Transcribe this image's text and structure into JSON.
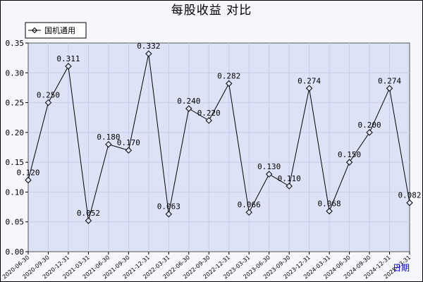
{
  "chart_data": {
    "type": "line",
    "title": "每股收益  对比",
    "xlabel": "日期",
    "ylabel": "",
    "ylim": [
      0,
      0.35
    ],
    "yticks": [
      "0.00",
      "0.05",
      "0.10",
      "0.15",
      "0.20",
      "0.25",
      "0.30",
      "0.35"
    ],
    "grid": true,
    "legend_position": "top-left",
    "colors": {
      "plot_bg": "#dde3f7",
      "grid": "#c4cbea",
      "line": "#000000",
      "outer_bg": "#f6f6fd"
    },
    "categories": [
      "2020-06-30",
      "2020-09-30",
      "2020-12-31",
      "2021-03-31",
      "2021-06-30",
      "2021-09-30",
      "2021-12-31",
      "2022-03-31",
      "2022-06-30",
      "2022-09-30",
      "2022-12-31",
      "2023-03-31",
      "2023-06-30",
      "2023-09-30",
      "2023-12-31",
      "2024-03-31",
      "2024-06-30",
      "2024-09-30",
      "2024-12-31",
      "2025-03-31"
    ],
    "series": [
      {
        "name": "国机通用",
        "values": [
          0.12,
          0.25,
          0.311,
          0.052,
          0.18,
          0.17,
          0.332,
          0.063,
          0.24,
          0.22,
          0.282,
          0.066,
          0.13,
          0.11,
          0.274,
          0.068,
          0.15,
          0.2,
          0.274,
          0.082
        ],
        "labels": [
          "0.120",
          "0.250",
          "0.311",
          "0.052",
          "0.180",
          "0.170",
          "0.332",
          "0.063",
          "0.240",
          "0.220",
          "0.282",
          "0.066",
          "0.130",
          "0.110",
          "0.274",
          "0.068",
          "0.150",
          "0.200",
          "0.274",
          "0.082"
        ]
      }
    ]
  }
}
